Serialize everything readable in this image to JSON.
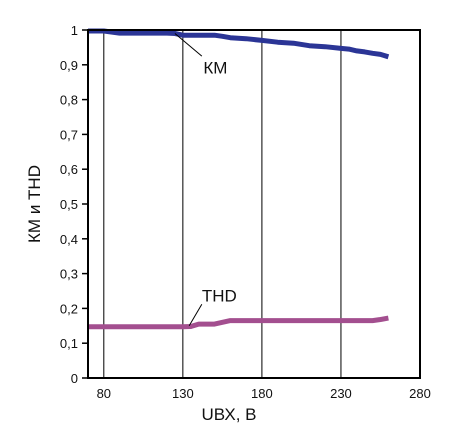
{
  "chart_data": {
    "type": "line",
    "xlabel": "UВХ, В",
    "ylabel": "КМ и THD",
    "xlim": [
      70,
      280
    ],
    "ylim": [
      0,
      1
    ],
    "grid": true,
    "x_ticks": [
      "80",
      "130",
      "180",
      "230",
      "280"
    ],
    "y_ticks": [
      "0",
      "0,1",
      "0,2",
      "0,3",
      "0,4",
      "0,5",
      "0,6",
      "0,7",
      "0,8",
      "0,9",
      "1"
    ],
    "series": [
      {
        "name": "КМ",
        "color": "#2b3596",
        "x": [
          70,
          80,
          90,
          100,
          110,
          120,
          125,
          130,
          140,
          150,
          155,
          160,
          170,
          180,
          190,
          200,
          210,
          220,
          230,
          235,
          240,
          245,
          250,
          255,
          260
        ],
        "y": [
          0.997,
          0.997,
          0.991,
          0.991,
          0.991,
          0.991,
          0.99,
          0.985,
          0.985,
          0.985,
          0.982,
          0.978,
          0.975,
          0.97,
          0.965,
          0.962,
          0.955,
          0.952,
          0.947,
          0.945,
          0.94,
          0.937,
          0.933,
          0.93,
          0.923
        ]
      },
      {
        "name": "THD",
        "color": "#a34f8f",
        "x": [
          70,
          80,
          100,
          120,
          130,
          135,
          140,
          150,
          160,
          170,
          190,
          210,
          230,
          250,
          255,
          260
        ],
        "y": [
          0.147,
          0.147,
          0.147,
          0.147,
          0.147,
          0.148,
          0.155,
          0.155,
          0.165,
          0.165,
          0.165,
          0.165,
          0.165,
          0.165,
          0.168,
          0.172
        ]
      }
    ],
    "annotations": [
      {
        "text": "КМ",
        "series": "КМ"
      },
      {
        "text": "THD",
        "series": "THD"
      }
    ]
  }
}
